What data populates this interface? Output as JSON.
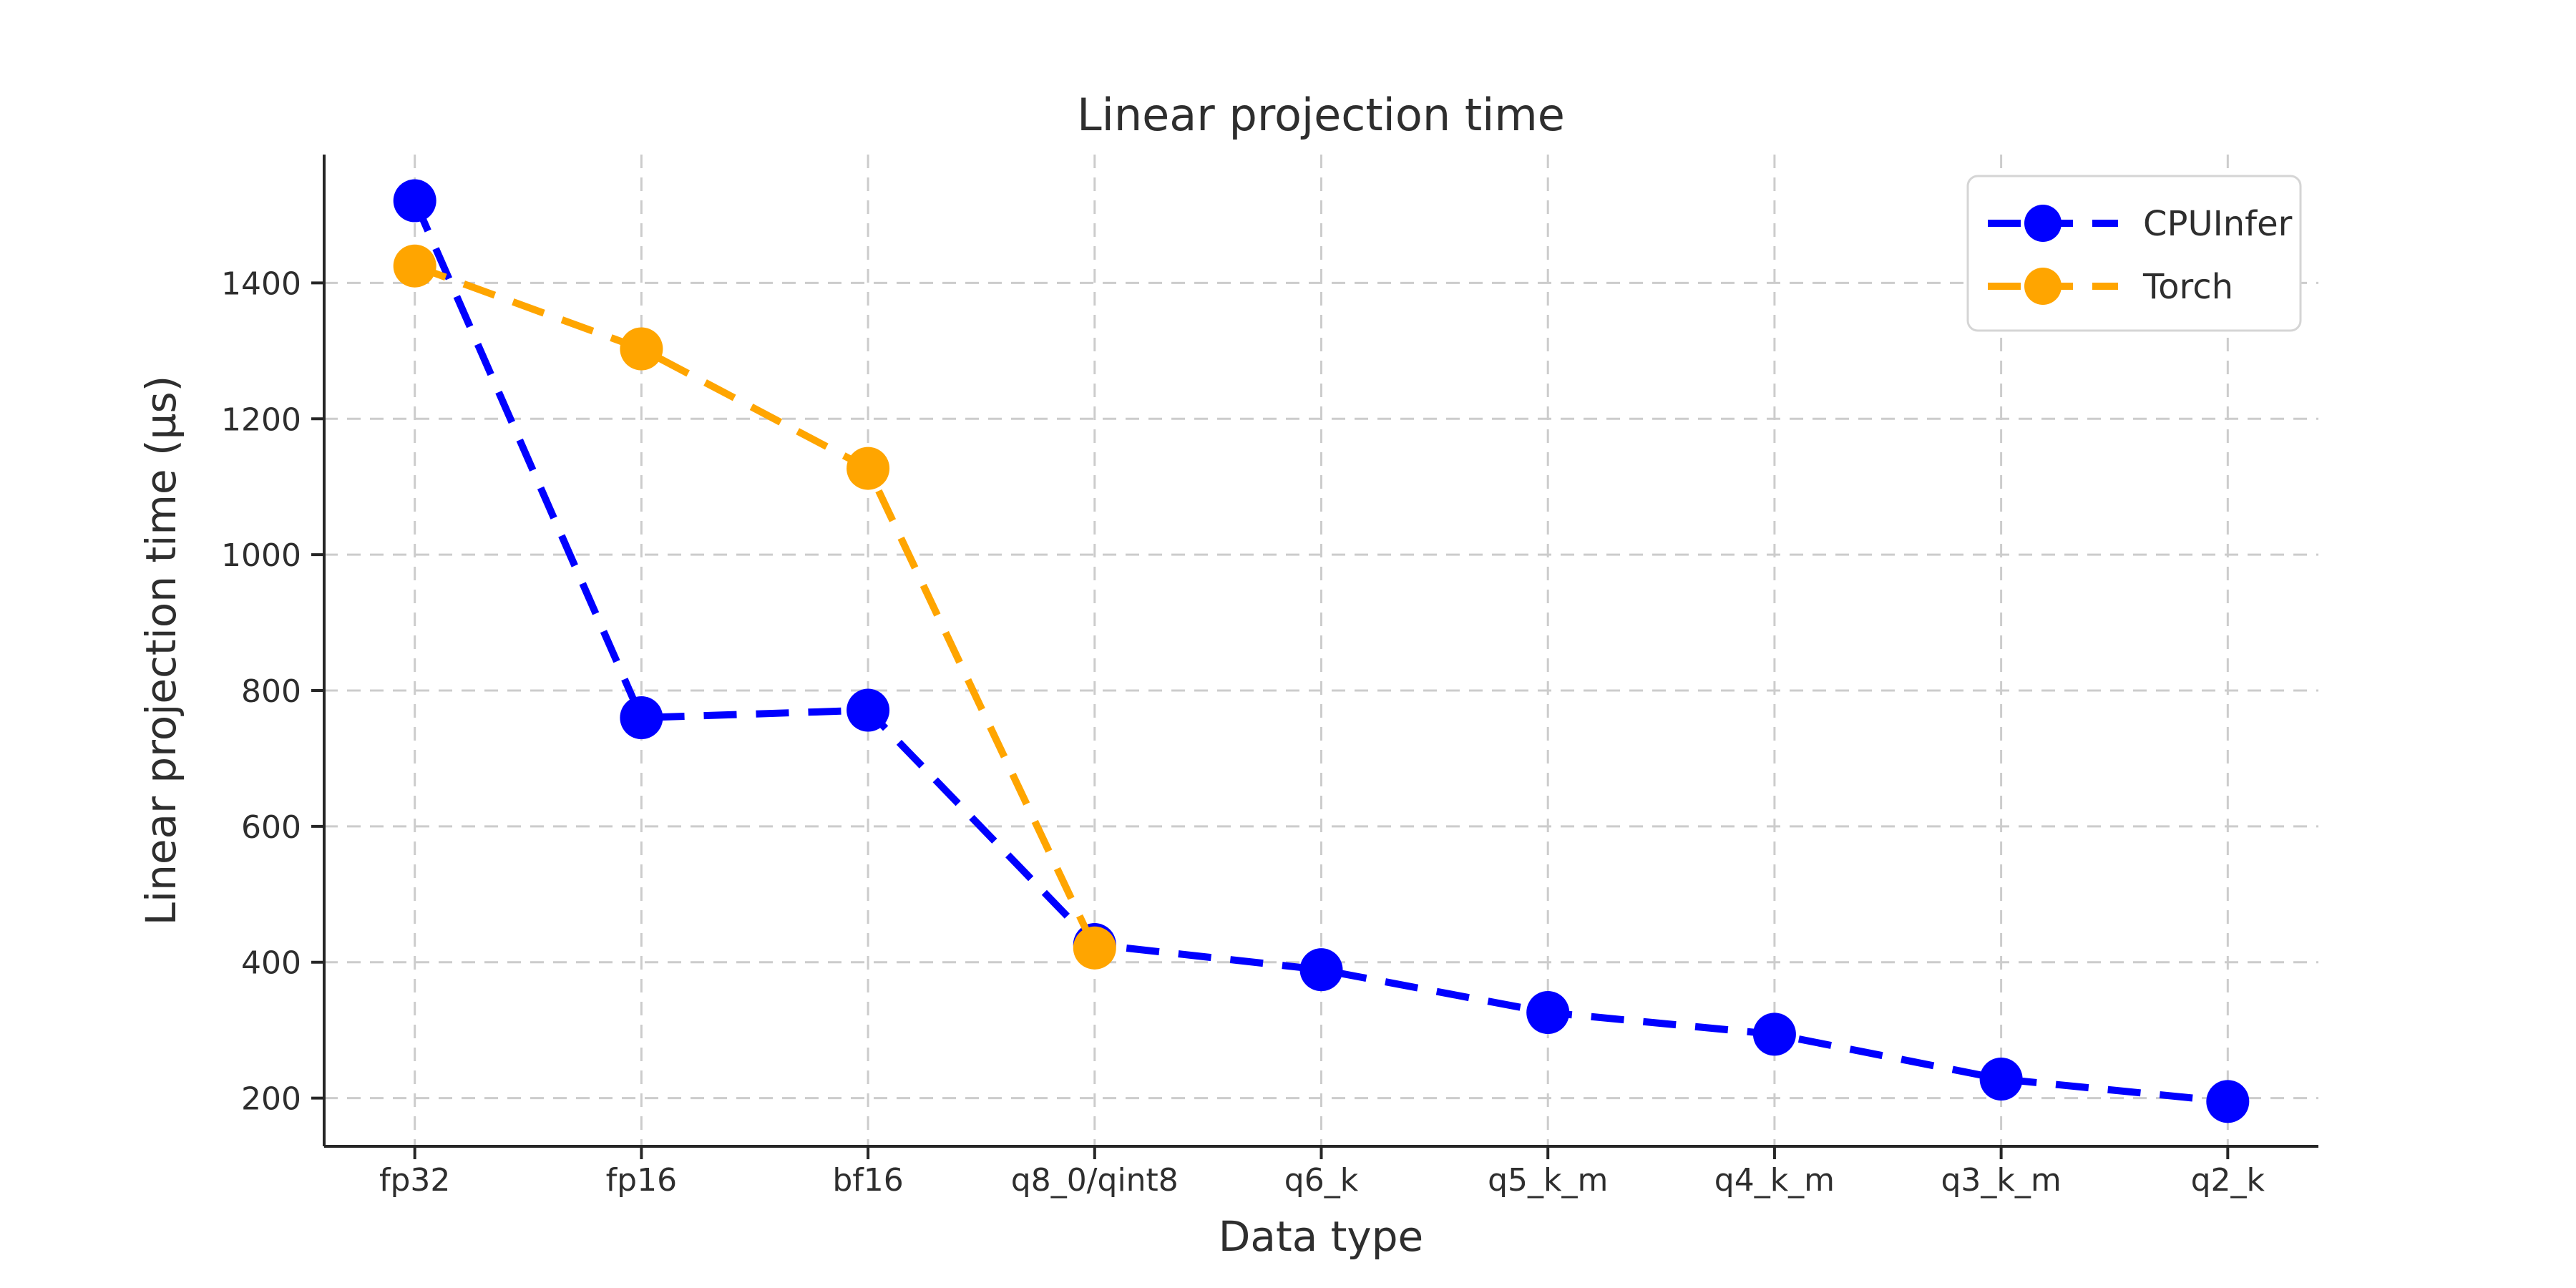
{
  "figure": {
    "background": "#ffffff"
  },
  "colors": {
    "cpuinfer_blue": "#0000ff",
    "torch_orange": "#ffa500",
    "grid_gray": "#cccccc",
    "spine_dark": "#262626",
    "text_dark": "#2e2e2e",
    "legend_border": "#d5d5d5",
    "legend_background": "#ffffff"
  },
  "chart_data": {
    "type": "line",
    "title": "Linear projection time",
    "xlabel": "Data type",
    "ylabel": "Linear projection time (µs)",
    "categories": [
      "fp32",
      "fp16",
      "bf16",
      "q8_0/qint8",
      "q6_k",
      "q5_k_m",
      "q4_k_m",
      "q3_k_m",
      "q2_k"
    ],
    "series": [
      {
        "name": "CPUInfer",
        "color": "#0000ff",
        "line_style": "dashed",
        "marker": "circle",
        "values": [
          1521,
          760,
          771,
          426,
          389,
          326,
          294,
          228,
          195
        ]
      },
      {
        "name": "Torch",
        "color": "#ffa500",
        "line_style": "dashed",
        "marker": "circle",
        "values": [
          1425,
          1303,
          1127,
          421,
          null,
          null,
          null,
          null,
          null
        ]
      }
    ],
    "yticks": [
      200,
      400,
      600,
      800,
      1000,
      1200,
      1400
    ],
    "ylim": [
      129,
      1589
    ],
    "grid": true,
    "grid_style": "dashed",
    "legend_position": "upper right",
    "legend_entries": [
      "CPUInfer",
      "Torch"
    ]
  }
}
